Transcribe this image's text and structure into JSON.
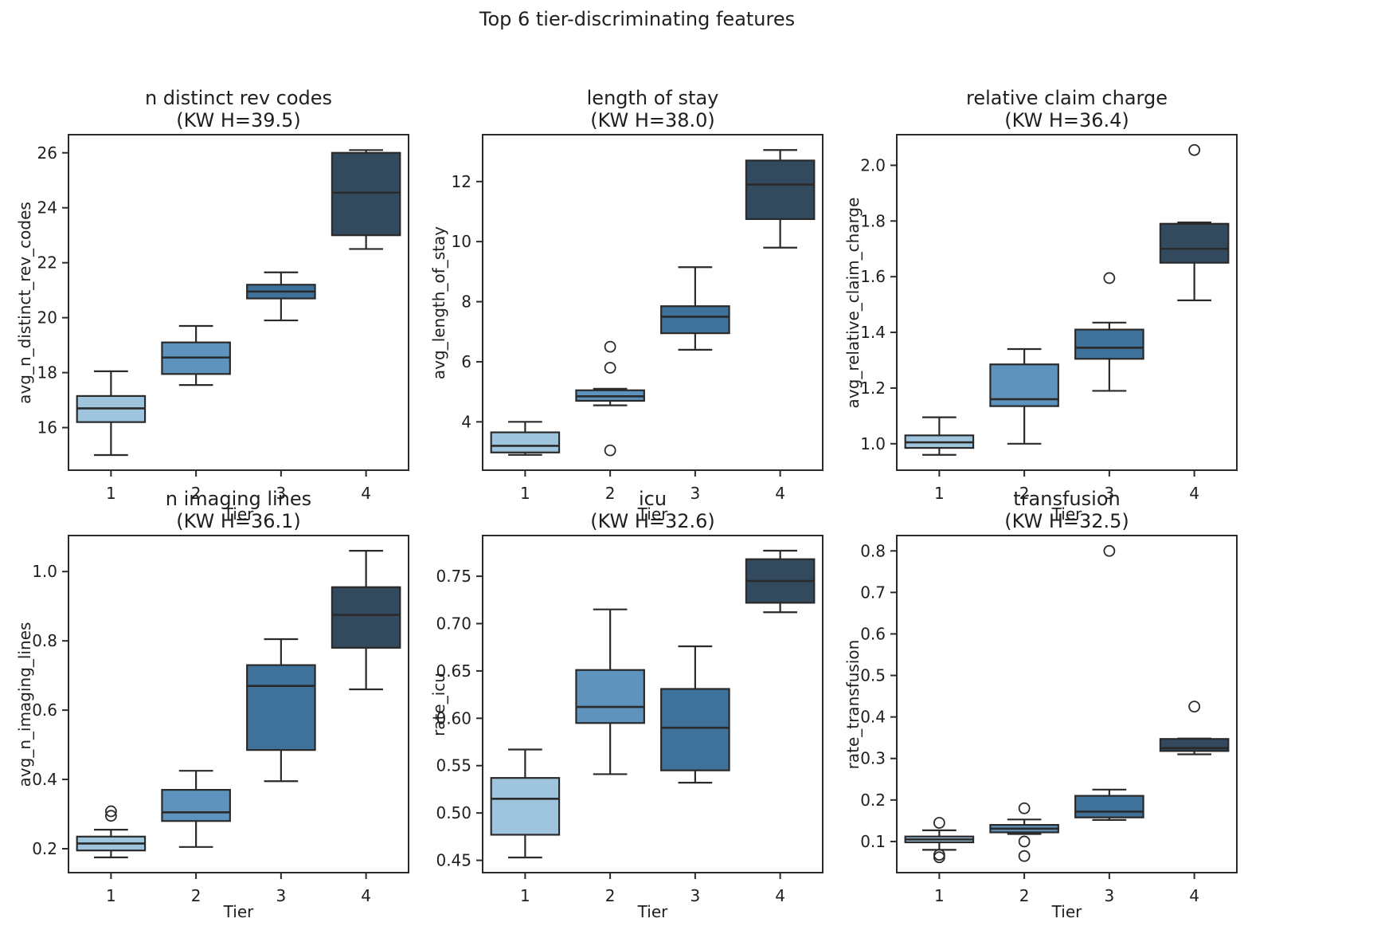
{
  "figure": {
    "suptitle": "Top 6 tier-discriminating features"
  },
  "palette": {
    "tier_colors": [
      "#9fc5de",
      "#5d93bc",
      "#3e729b",
      "#334a5e"
    ],
    "line_color": "#2a2a2a",
    "background": "#ffffff"
  },
  "chart_data": [
    {
      "type": "box",
      "title": "n distinct rev codes",
      "subtitle": "(KW H=39.5)",
      "kw_h": 39.5,
      "ylabel": "avg_n_distinct_rev_codes",
      "xlabel": "Tier",
      "categories": [
        "1",
        "2",
        "3",
        "4"
      ],
      "ylim": [
        14.45,
        26.66
      ],
      "yticks": [
        16,
        18,
        20,
        22,
        24,
        26
      ],
      "ydecimals": 0,
      "boxes": [
        {
          "tier": "1",
          "whisker_low": 15.0,
          "q1": 16.2,
          "median": 16.7,
          "q3": 17.15,
          "whisker_high": 18.05,
          "outliers": []
        },
        {
          "tier": "2",
          "whisker_low": 17.55,
          "q1": 17.95,
          "median": 18.55,
          "q3": 19.1,
          "whisker_high": 19.7,
          "outliers": []
        },
        {
          "tier": "3",
          "whisker_low": 19.9,
          "q1": 20.7,
          "median": 20.95,
          "q3": 21.2,
          "whisker_high": 21.65,
          "outliers": []
        },
        {
          "tier": "4",
          "whisker_low": 22.5,
          "q1": 23.0,
          "median": 24.55,
          "q3": 26.0,
          "whisker_high": 26.1,
          "outliers": []
        }
      ]
    },
    {
      "type": "box",
      "title": "length of stay",
      "subtitle": "(KW H=38.0)",
      "kw_h": 38.0,
      "ylabel": "avg_length_of_stay",
      "xlabel": "Tier",
      "categories": [
        "1",
        "2",
        "3",
        "4"
      ],
      "ylim": [
        2.39,
        13.56
      ],
      "yticks": [
        4,
        6,
        8,
        10,
        12
      ],
      "ydecimals": 0,
      "boxes": [
        {
          "tier": "1",
          "whisker_low": 2.9,
          "q1": 2.98,
          "median": 3.2,
          "q3": 3.65,
          "whisker_high": 4.0,
          "outliers": []
        },
        {
          "tier": "2",
          "whisker_low": 4.55,
          "q1": 4.7,
          "median": 4.85,
          "q3": 5.05,
          "whisker_high": 5.1,
          "outliers": [
            6.5,
            5.8,
            3.05
          ]
        },
        {
          "tier": "3",
          "whisker_low": 6.4,
          "q1": 6.95,
          "median": 7.5,
          "q3": 7.85,
          "whisker_high": 9.15,
          "outliers": []
        },
        {
          "tier": "4",
          "whisker_low": 9.8,
          "q1": 10.75,
          "median": 11.9,
          "q3": 12.7,
          "whisker_high": 13.05,
          "outliers": []
        }
      ]
    },
    {
      "type": "box",
      "title": "relative claim charge",
      "subtitle": "(KW H=36.4)",
      "kw_h": 36.4,
      "ylabel": "avg_relative_claim_charge",
      "xlabel": "Tier",
      "categories": [
        "1",
        "2",
        "3",
        "4"
      ],
      "ylim": [
        0.905,
        2.11
      ],
      "yticks": [
        1.0,
        1.2,
        1.4,
        1.6,
        1.8,
        2.0
      ],
      "ydecimals": 1,
      "boxes": [
        {
          "tier": "1",
          "whisker_low": 0.96,
          "q1": 0.985,
          "median": 1.005,
          "q3": 1.03,
          "whisker_high": 1.095,
          "outliers": []
        },
        {
          "tier": "2",
          "whisker_low": 1.0,
          "q1": 1.135,
          "median": 1.16,
          "q3": 1.285,
          "whisker_high": 1.34,
          "outliers": []
        },
        {
          "tier": "3",
          "whisker_low": 1.19,
          "q1": 1.305,
          "median": 1.345,
          "q3": 1.41,
          "whisker_high": 1.435,
          "outliers": [
            1.595
          ]
        },
        {
          "tier": "4",
          "whisker_low": 1.515,
          "q1": 1.65,
          "median": 1.7,
          "q3": 1.79,
          "whisker_high": 1.795,
          "outliers": [
            2.055
          ]
        }
      ]
    },
    {
      "type": "box",
      "title": "n imaging lines",
      "subtitle": "(KW H=36.1)",
      "kw_h": 36.1,
      "ylabel": "avg_n_imaging_lines",
      "xlabel": "Tier",
      "categories": [
        "1",
        "2",
        "3",
        "4"
      ],
      "ylim": [
        0.131,
        1.104
      ],
      "yticks": [
        0.2,
        0.4,
        0.6,
        0.8,
        1.0
      ],
      "ydecimals": 1,
      "boxes": [
        {
          "tier": "1",
          "whisker_low": 0.175,
          "q1": 0.195,
          "median": 0.215,
          "q3": 0.235,
          "whisker_high": 0.255,
          "outliers": [
            0.295,
            0.308
          ]
        },
        {
          "tier": "2",
          "whisker_low": 0.205,
          "q1": 0.28,
          "median": 0.305,
          "q3": 0.37,
          "whisker_high": 0.425,
          "outliers": []
        },
        {
          "tier": "3",
          "whisker_low": 0.395,
          "q1": 0.485,
          "median": 0.67,
          "q3": 0.73,
          "whisker_high": 0.805,
          "outliers": []
        },
        {
          "tier": "4",
          "whisker_low": 0.66,
          "q1": 0.78,
          "median": 0.875,
          "q3": 0.955,
          "whisker_high": 1.06,
          "outliers": []
        }
      ]
    },
    {
      "type": "box",
      "title": "icu",
      "subtitle": "(KW H=32.6)",
      "kw_h": 32.6,
      "ylabel": "rate_icu",
      "xlabel": "Tier",
      "categories": [
        "1",
        "2",
        "3",
        "4"
      ],
      "ylim": [
        0.437,
        0.793
      ],
      "yticks": [
        0.45,
        0.5,
        0.55,
        0.6,
        0.65,
        0.7,
        0.75
      ],
      "ydecimals": 2,
      "boxes": [
        {
          "tier": "1",
          "whisker_low": 0.453,
          "q1": 0.477,
          "median": 0.515,
          "q3": 0.537,
          "whisker_high": 0.567,
          "outliers": []
        },
        {
          "tier": "2",
          "whisker_low": 0.541,
          "q1": 0.595,
          "median": 0.612,
          "q3": 0.651,
          "whisker_high": 0.715,
          "outliers": []
        },
        {
          "tier": "3",
          "whisker_low": 0.532,
          "q1": 0.545,
          "median": 0.59,
          "q3": 0.631,
          "whisker_high": 0.676,
          "outliers": []
        },
        {
          "tier": "4",
          "whisker_low": 0.712,
          "q1": 0.722,
          "median": 0.745,
          "q3": 0.768,
          "whisker_high": 0.777,
          "outliers": []
        }
      ]
    },
    {
      "type": "box",
      "title": "transfusion",
      "subtitle": "(KW H=32.5)",
      "kw_h": 32.5,
      "ylabel": "rate_transfusion",
      "xlabel": "Tier",
      "categories": [
        "1",
        "2",
        "3",
        "4"
      ],
      "ylim": [
        0.025,
        0.837
      ],
      "yticks": [
        0.1,
        0.2,
        0.3,
        0.4,
        0.5,
        0.6,
        0.7,
        0.8
      ],
      "ydecimals": 1,
      "boxes": [
        {
          "tier": "1",
          "whisker_low": 0.08,
          "q1": 0.098,
          "median": 0.105,
          "q3": 0.112,
          "whisker_high": 0.127,
          "outliers": [
            0.145,
            0.068,
            0.062
          ]
        },
        {
          "tier": "2",
          "whisker_low": 0.118,
          "q1": 0.122,
          "median": 0.131,
          "q3": 0.14,
          "whisker_high": 0.153,
          "outliers": [
            0.18,
            0.1,
            0.065
          ]
        },
        {
          "tier": "3",
          "whisker_low": 0.152,
          "q1": 0.158,
          "median": 0.172,
          "q3": 0.21,
          "whisker_high": 0.225,
          "outliers": [
            0.8
          ]
        },
        {
          "tier": "4",
          "whisker_low": 0.31,
          "q1": 0.318,
          "median": 0.325,
          "q3": 0.347,
          "whisker_high": 0.348,
          "outliers": [
            0.425
          ]
        }
      ]
    }
  ]
}
